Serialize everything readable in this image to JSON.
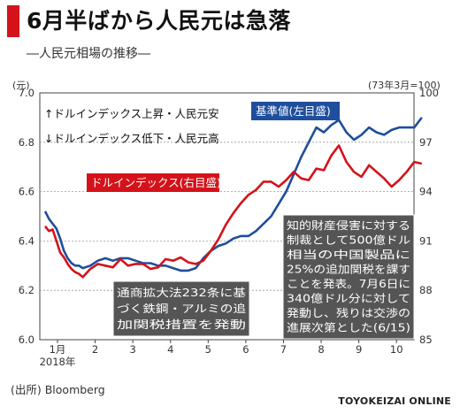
{
  "header": {
    "title": "6月半ばから人民元は急落",
    "subtitle": "―人民元相場の推移―"
  },
  "axes": {
    "left_unit": "(元)",
    "right_unit": "(73年3月=100)"
  },
  "source": "(出所) Bloomberg",
  "brand": "TOYOKEIZAI ONLINE",
  "colors": {
    "base_rate": "#1f4e9c",
    "dollar_index": "#d4121a",
    "annotation_bg": "#555555"
  },
  "chart_data": {
    "type": "line",
    "title": "6月半ばから人民元は急落",
    "subtitle": "―人民元相場の推移―",
    "x_ticks": [
      "1月",
      "2",
      "3",
      "4",
      "5",
      "6",
      "7",
      "8",
      "9",
      "10"
    ],
    "x_year_label": "2018年",
    "y_left": {
      "ticks": [
        "7.0",
        "6.8",
        "6.6",
        "6.4",
        "6.2",
        "6.0"
      ],
      "range": [
        6.0,
        7.0
      ],
      "unit": "(元)"
    },
    "y_right": {
      "ticks": [
        "100",
        "97",
        "94",
        "91",
        "88",
        "85"
      ],
      "range": [
        85,
        100
      ],
      "unit": "(73年3月=100)"
    },
    "legend_notes": [
      {
        "symbol": "↑",
        "text": "ドルインデックス上昇・人民元安"
      },
      {
        "symbol": "↓",
        "text": "ドルインデックス低下・人民元高"
      }
    ],
    "series": [
      {
        "name": "基準値(左目盛)",
        "axis": "left",
        "color": "#1f4e9c",
        "x": [
          0.0,
          0.1,
          0.2,
          0.3,
          0.4,
          0.5,
          0.6,
          0.7,
          0.8,
          0.9,
          1.0,
          1.2,
          1.4,
          1.6,
          1.8,
          2.0,
          2.2,
          2.4,
          2.6,
          2.8,
          3.0,
          3.2,
          3.4,
          3.6,
          3.8,
          4.0,
          4.2,
          4.4,
          4.6,
          4.8,
          5.0,
          5.2,
          5.4,
          5.6,
          5.8,
          6.0,
          6.2,
          6.4,
          6.6,
          6.8,
          7.0,
          7.2,
          7.4,
          7.6,
          7.8,
          8.0,
          8.2,
          8.4,
          8.6,
          8.8,
          9.0,
          9.2,
          9.4,
          9.6,
          9.8,
          10.0
        ],
        "values": [
          6.52,
          6.49,
          6.47,
          6.45,
          6.41,
          6.36,
          6.33,
          6.31,
          6.3,
          6.3,
          6.29,
          6.3,
          6.32,
          6.33,
          6.32,
          6.33,
          6.33,
          6.32,
          6.31,
          6.31,
          6.3,
          6.3,
          6.29,
          6.28,
          6.28,
          6.29,
          6.33,
          6.36,
          6.38,
          6.39,
          6.41,
          6.42,
          6.42,
          6.44,
          6.47,
          6.5,
          6.55,
          6.6,
          6.67,
          6.74,
          6.8,
          6.86,
          6.84,
          6.87,
          6.89,
          6.84,
          6.81,
          6.83,
          6.86,
          6.84,
          6.83,
          6.85,
          6.86,
          6.86,
          6.86,
          6.9
        ]
      },
      {
        "name": "ドルインデックス(右目盛)",
        "axis": "right",
        "color": "#d4121a",
        "x": [
          0.0,
          0.1,
          0.2,
          0.3,
          0.4,
          0.5,
          0.6,
          0.7,
          0.8,
          0.9,
          1.0,
          1.2,
          1.4,
          1.6,
          1.8,
          2.0,
          2.2,
          2.4,
          2.6,
          2.8,
          3.0,
          3.2,
          3.4,
          3.6,
          3.8,
          4.0,
          4.2,
          4.4,
          4.6,
          4.8,
          5.0,
          5.2,
          5.4,
          5.6,
          5.8,
          6.0,
          6.2,
          6.4,
          6.6,
          6.8,
          7.0,
          7.2,
          7.4,
          7.6,
          7.8,
          8.0,
          8.2,
          8.4,
          8.6,
          8.8,
          9.0,
          9.2,
          9.4,
          9.6,
          9.8,
          10.0
        ],
        "values": [
          91.9,
          91.6,
          91.7,
          91.0,
          90.3,
          90.0,
          89.6,
          89.3,
          89.1,
          89.0,
          88.8,
          89.3,
          89.6,
          89.5,
          89.4,
          89.9,
          89.5,
          89.6,
          89.6,
          89.3,
          89.4,
          89.9,
          89.8,
          90.0,
          89.7,
          89.6,
          89.8,
          90.4,
          91.1,
          92.0,
          92.7,
          93.3,
          93.8,
          94.1,
          94.6,
          94.6,
          94.3,
          94.7,
          95.2,
          94.8,
          94.7,
          95.4,
          95.3,
          96.2,
          96.8,
          95.8,
          95.2,
          94.9,
          95.6,
          95.2,
          94.8,
          94.3,
          94.7,
          95.2,
          95.8,
          95.7
        ]
      }
    ],
    "annotations": [
      {
        "lines": [
          "通商拡大法232条に基",
          "づく鉄鋼・アルミの追",
          "加関税措置を発動"
        ]
      },
      {
        "lines": [
          "知的財産侵害に対する",
          "制裁として500億ドル",
          "相当の中国製品に",
          "25%の追加関税を課す",
          "ことを発表。7月6日に",
          "340億ドル分に対して",
          "発動し、残りは交渉の",
          "進展次第とした(6/15)"
        ]
      }
    ]
  }
}
